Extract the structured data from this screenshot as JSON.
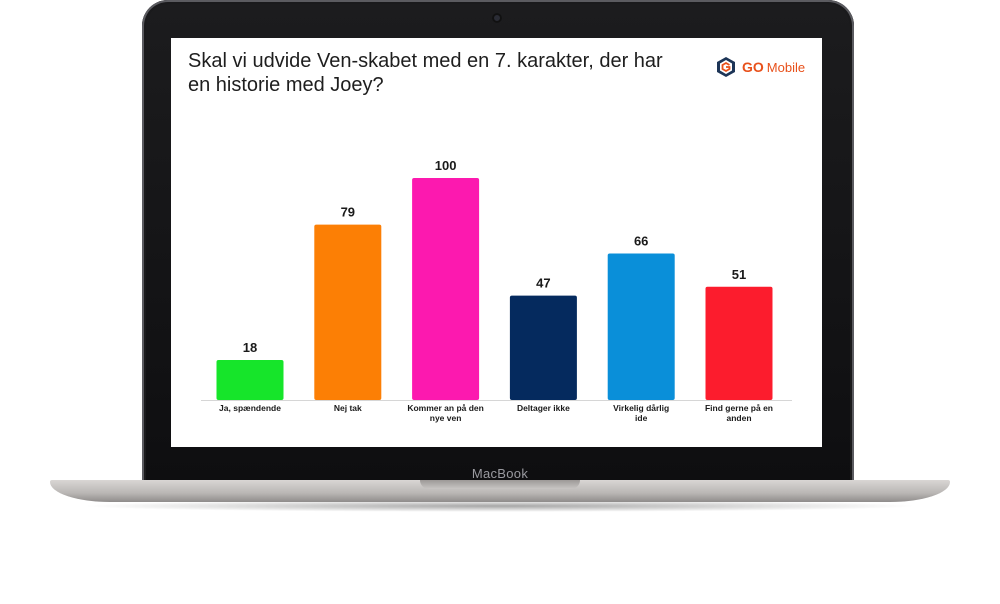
{
  "device": {
    "brand": "MacBook"
  },
  "logo": {
    "go": "GO",
    "mobile": "Mobile",
    "icon": "go-mobile-logo-icon"
  },
  "chart_data": {
    "type": "bar",
    "title": "Skal vi udvide Ven-skabet med en 7. karakter, der har en historie med Joey?",
    "categories": [
      "Ja, spændende",
      "Nej tak",
      "Kommer an på den nye ven",
      "Deltager ikke",
      "Virkelig dårlig ide",
      "Find gerne på en anden"
    ],
    "values": [
      18,
      79,
      100,
      47,
      66,
      51
    ],
    "colors": [
      "#16e52a",
      "#fc7f05",
      "#fc19af",
      "#052a5e",
      "#0a8fd9",
      "#fc1c2d"
    ],
    "data_labels": true,
    "grid": false,
    "legend": "none",
    "xlabel": "",
    "ylabel": "",
    "ylim": [
      0,
      100
    ]
  }
}
